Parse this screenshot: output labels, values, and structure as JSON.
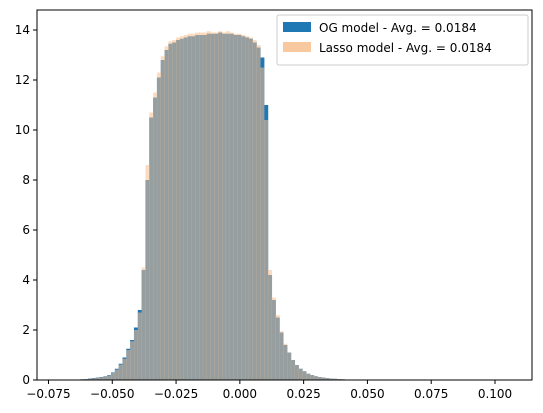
{
  "chart_data": {
    "type": "histogram",
    "title": "",
    "xlabel": "",
    "ylabel": "",
    "xlim": [
      -0.0795,
      0.1145
    ],
    "ylim": [
      0,
      14.8
    ],
    "xticks": [
      -0.075,
      -0.05,
      -0.025,
      0.0,
      0.025,
      0.05,
      0.075,
      0.1
    ],
    "xtick_labels": [
      "−0.075",
      "−0.050",
      "−0.025",
      "0.000",
      "0.025",
      "0.050",
      "0.075",
      "0.100"
    ],
    "yticks": [
      0,
      2,
      4,
      6,
      8,
      10,
      12,
      14
    ],
    "ytick_labels": [
      "0",
      "2",
      "4",
      "6",
      "8",
      "10",
      "12",
      "14"
    ],
    "grid": false,
    "legend_position": "top-right",
    "bin_start": -0.07,
    "bin_width": 0.0015,
    "series": [
      {
        "name": "OG model - Avg. = 0.0184",
        "color": "#1f77b4",
        "values": [
          0.01,
          0.01,
          0.02,
          0.02,
          0.02,
          0.03,
          0.04,
          0.06,
          0.08,
          0.1,
          0.12,
          0.15,
          0.2,
          0.3,
          0.45,
          0.65,
          0.9,
          1.25,
          1.6,
          2.1,
          2.8,
          4.4,
          8.0,
          10.5,
          11.3,
          12.1,
          12.8,
          13.2,
          13.45,
          13.5,
          13.6,
          13.65,
          13.7,
          13.75,
          13.75,
          13.8,
          13.8,
          13.8,
          13.85,
          13.85,
          13.85,
          13.9,
          13.85,
          13.85,
          13.85,
          13.8,
          13.8,
          13.75,
          13.7,
          13.65,
          13.5,
          13.3,
          12.9,
          11.0,
          4.2,
          3.2,
          2.5,
          1.9,
          1.4,
          1.1,
          0.8,
          0.6,
          0.45,
          0.35,
          0.25,
          0.2,
          0.15,
          0.12,
          0.1,
          0.08,
          0.06,
          0.05,
          0.04,
          0.03,
          0.02,
          0.02,
          0.01,
          0.01
        ]
      },
      {
        "name": "Lasso model - Avg. = 0.0184",
        "color": "#f7c08e",
        "values": [
          0.01,
          0.01,
          0.01,
          0.02,
          0.02,
          0.03,
          0.04,
          0.05,
          0.07,
          0.09,
          0.11,
          0.14,
          0.19,
          0.28,
          0.42,
          0.62,
          0.85,
          1.2,
          1.55,
          2.0,
          2.7,
          4.5,
          8.6,
          10.7,
          11.5,
          12.3,
          12.95,
          13.35,
          13.55,
          13.6,
          13.7,
          13.75,
          13.8,
          13.85,
          13.85,
          13.9,
          13.9,
          13.9,
          13.95,
          13.9,
          13.9,
          13.95,
          13.9,
          13.95,
          13.9,
          13.85,
          13.85,
          13.8,
          13.75,
          13.7,
          13.6,
          13.4,
          12.5,
          10.4,
          4.4,
          3.3,
          2.6,
          1.95,
          1.45,
          1.1,
          0.8,
          0.6,
          0.45,
          0.35,
          0.25,
          0.2,
          0.15,
          0.12,
          0.1,
          0.08,
          0.06,
          0.05,
          0.04,
          0.03,
          0.02,
          0.02,
          0.01,
          0.01
        ]
      }
    ]
  }
}
